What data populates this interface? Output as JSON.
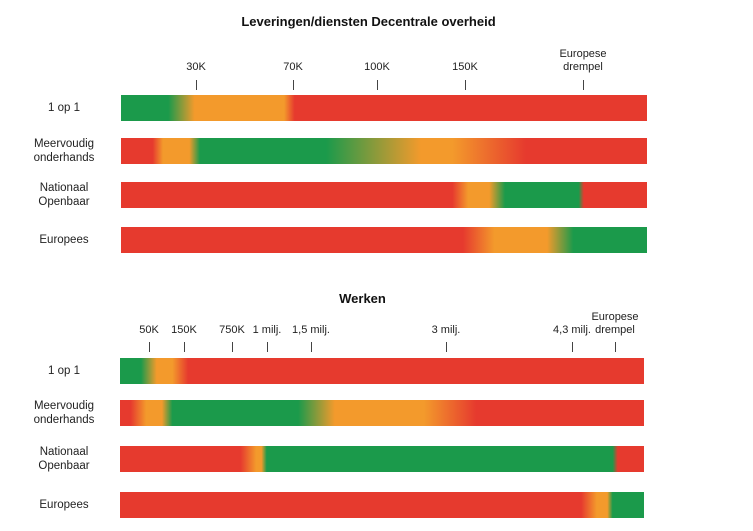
{
  "chart_data": [
    {
      "type": "gradient-bar",
      "title": "Leveringen/diensten Decentrale overheid",
      "ticks": [
        {
          "label": "30K"
        },
        {
          "label": "70K"
        },
        {
          "label": "100K"
        },
        {
          "label": "150K"
        },
        {
          "label": "Europese\ndrempel"
        }
      ],
      "rows": [
        {
          "label": "1 op 1"
        },
        {
          "label": "Meervoudig\nonderhands"
        },
        {
          "label": "Nationaal\nOpenbaar"
        },
        {
          "label": "Europees"
        }
      ]
    },
    {
      "type": "gradient-bar",
      "title": "Werken",
      "ticks": [
        {
          "label": "50K"
        },
        {
          "label": "150K"
        },
        {
          "label": "750K"
        },
        {
          "label": "1 milj."
        },
        {
          "label": "1,5 milj."
        },
        {
          "label": "3 milj."
        },
        {
          "label": "4,3 milj."
        },
        {
          "label": "Europese\ndrempel"
        }
      ],
      "rows": [
        {
          "label": "1 op 1"
        },
        {
          "label": "Meervoudig\nonderhands"
        },
        {
          "label": "Nationaal\nOpenbaar"
        },
        {
          "label": "Europees"
        }
      ]
    }
  ],
  "colors": {
    "red": "#e63a2e",
    "orange": "#f39a2c",
    "green": "#1b9a4b"
  }
}
